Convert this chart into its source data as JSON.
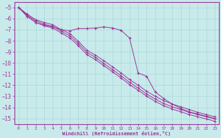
{
  "title": "",
  "xlabel": "Windchill (Refroidissement éolien,°C)",
  "ylabel": "",
  "bg_color": "#c8eaea",
  "grid_color": "#a8d8d8",
  "line_color": "#993399",
  "xlim": [
    -0.5,
    23.5
  ],
  "ylim": [
    -15.5,
    -4.5
  ],
  "xticks": [
    0,
    1,
    2,
    3,
    4,
    5,
    6,
    7,
    8,
    9,
    10,
    11,
    12,
    13,
    14,
    15,
    16,
    17,
    18,
    19,
    20,
    21,
    22,
    23
  ],
  "yticks": [
    -5,
    -6,
    -7,
    -8,
    -9,
    -10,
    -11,
    -12,
    -13,
    -14,
    -15
  ],
  "line1_x": [
    0,
    1,
    2,
    3,
    4,
    5,
    6,
    7,
    8,
    9,
    10,
    11,
    12,
    13,
    14,
    15,
    16,
    17,
    18,
    19,
    20,
    21,
    22,
    23
  ],
  "line1_y": [
    -5.0,
    -5.6,
    -6.1,
    -6.35,
    -6.55,
    -7.0,
    -7.35,
    -8.05,
    -8.85,
    -9.3,
    -9.8,
    -10.35,
    -10.9,
    -11.5,
    -12.0,
    -12.55,
    -13.0,
    -13.4,
    -13.7,
    -13.95,
    -14.2,
    -14.45,
    -14.65,
    -14.85
  ],
  "line2_x": [
    0,
    1,
    2,
    3,
    4,
    5,
    6,
    7,
    8,
    9,
    10,
    11,
    12,
    13,
    14,
    15,
    16,
    17,
    18,
    19,
    20,
    21,
    22,
    23
  ],
  "line2_y": [
    -5.0,
    -5.7,
    -6.2,
    -6.5,
    -6.7,
    -7.15,
    -7.55,
    -8.25,
    -9.05,
    -9.5,
    -10.05,
    -10.6,
    -11.15,
    -11.75,
    -12.25,
    -12.8,
    -13.25,
    -13.65,
    -13.95,
    -14.2,
    -14.45,
    -14.65,
    -14.85,
    -15.05
  ],
  "line3_x": [
    0,
    1,
    2,
    3,
    4,
    5,
    6,
    7,
    8,
    9,
    10,
    11,
    12,
    13,
    14,
    15,
    16,
    17,
    18,
    19,
    20,
    21,
    22,
    23
  ],
  "line3_y": [
    -5.0,
    -5.8,
    -6.35,
    -6.65,
    -6.85,
    -7.3,
    -7.75,
    -8.45,
    -9.25,
    -9.7,
    -10.25,
    -10.8,
    -11.35,
    -11.95,
    -12.45,
    -13.0,
    -13.45,
    -13.85,
    -14.15,
    -14.4,
    -14.65,
    -14.85,
    -15.05,
    -15.25
  ],
  "line4_x": [
    0,
    1,
    2,
    3,
    4,
    5,
    6,
    7,
    8,
    9,
    10,
    11,
    12,
    13,
    14,
    15,
    16,
    17,
    18,
    19,
    20,
    21,
    22,
    23
  ],
  "line4_y": [
    -5.0,
    -5.8,
    -6.35,
    -6.6,
    -6.75,
    -7.0,
    -7.1,
    -6.9,
    -6.9,
    -6.85,
    -6.75,
    -6.85,
    -7.05,
    -7.75,
    -10.9,
    -11.2,
    -12.6,
    -13.2,
    -13.7,
    -14.1,
    -14.4,
    -14.6,
    -14.8,
    -15.0
  ]
}
